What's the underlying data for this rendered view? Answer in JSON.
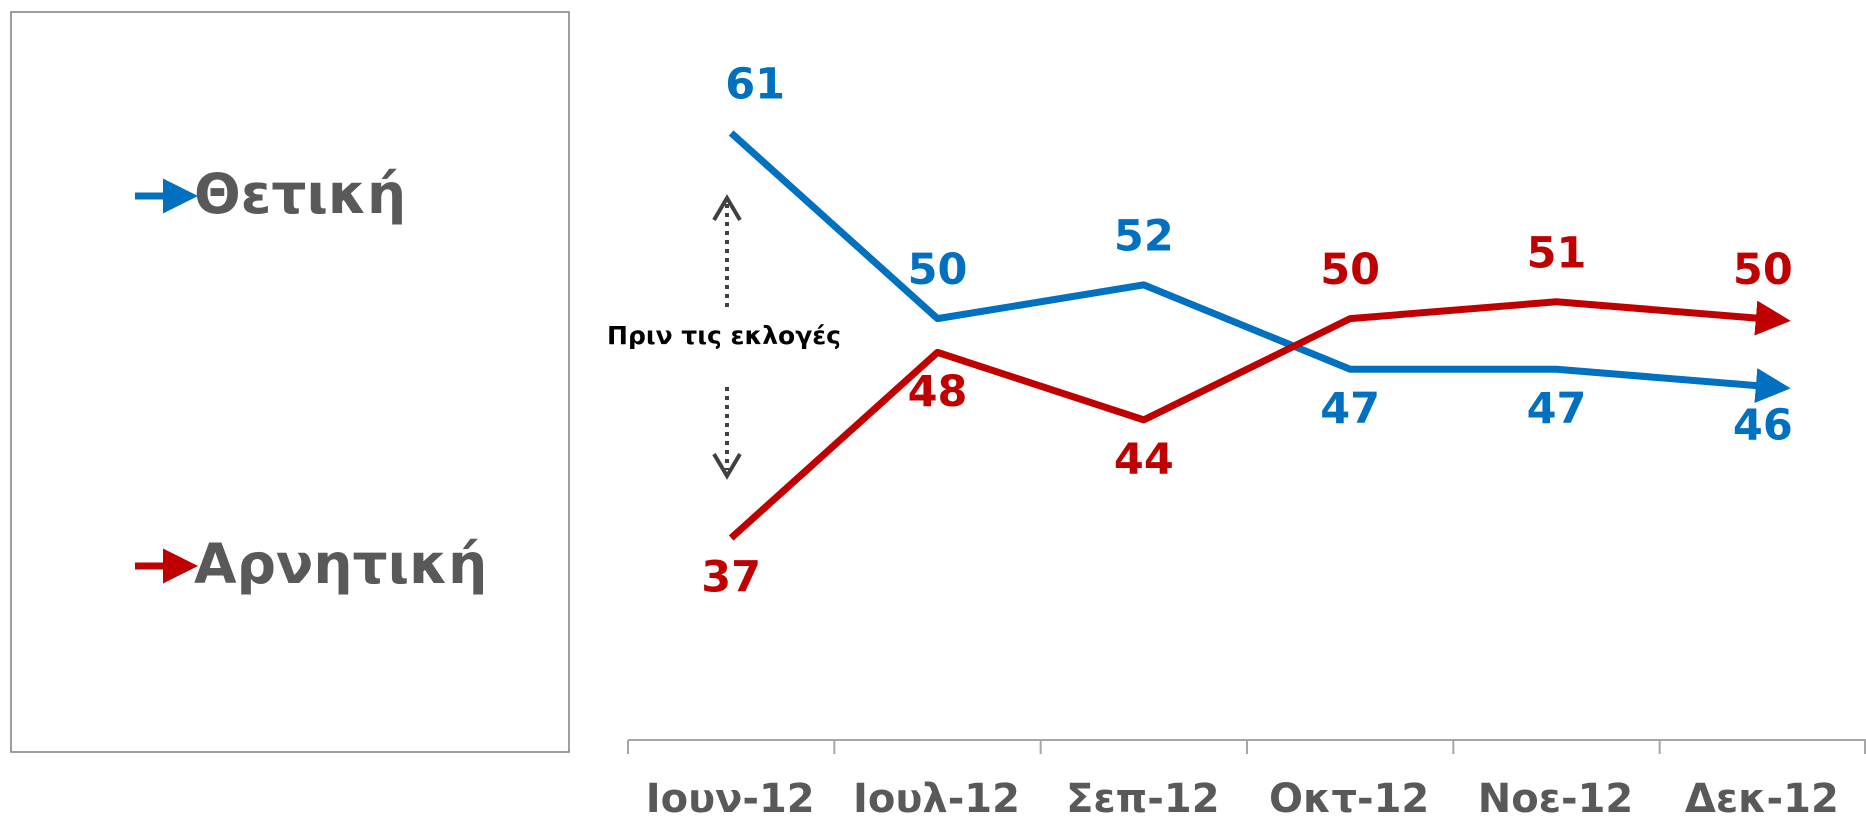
{
  "chart_data": {
    "type": "line",
    "categories": [
      "Ιουν-12",
      "Ιουλ-12",
      "Σεπ-12",
      "Οκτ-12",
      "Νοε-12",
      "Δεκ-12"
    ],
    "series": [
      {
        "name": "Θετική",
        "color": "#0070c0",
        "values": [
          61,
          50,
          52,
          47,
          47,
          46
        ]
      },
      {
        "name": "Αρνητική",
        "color": "#c00000",
        "values": [
          37,
          48,
          44,
          50,
          51,
          50
        ]
      }
    ],
    "annotation": "Πριν τις εκλογές"
  }
}
